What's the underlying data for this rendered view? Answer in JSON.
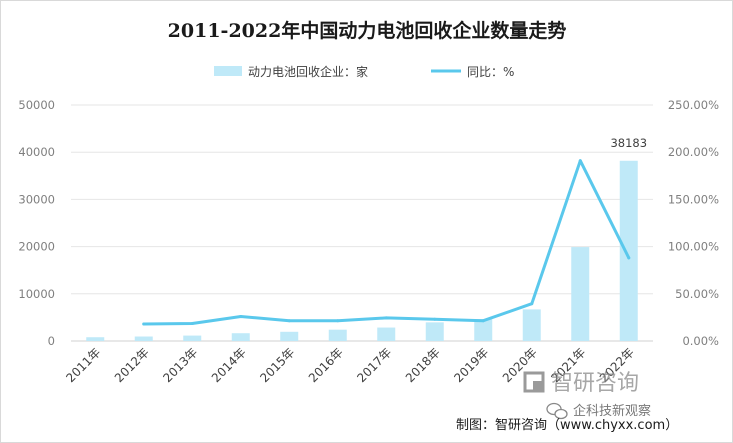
{
  "chart_data": {
    "type": "bar",
    "title": "2011-2022年中国动力电池回收企业数量走势",
    "categories": [
      "2011年",
      "2012年",
      "2013年",
      "2014年",
      "2015年",
      "2016年",
      "2017年",
      "2018年",
      "2019年",
      "2020年",
      "2021年",
      "2022年"
    ],
    "series": [
      {
        "name": "动力电池回收企业：家",
        "type": "bar",
        "axis": "left",
        "values": [
          800,
          950,
          1150,
          1650,
          1950,
          2400,
          2850,
          3950,
          4650,
          6700,
          19900,
          38183
        ]
      },
      {
        "name": "同比：%",
        "type": "line",
        "axis": "right",
        "values": [
          null,
          18.0,
          18.5,
          26.0,
          21.5,
          21.5,
          24.5,
          23.0,
          21.5,
          39.5,
          191.0,
          88.0
        ]
      }
    ],
    "y_left": {
      "min": 0,
      "max": 50000,
      "ticks": [
        "0",
        "10000",
        "20000",
        "30000",
        "40000",
        "50000"
      ]
    },
    "y_right": {
      "min": 0,
      "max": 250,
      "ticks": [
        "0.00%",
        "50.00%",
        "100.00%",
        "150.00%",
        "200.00%",
        "250.00%"
      ]
    },
    "data_labels": [
      {
        "index": 11,
        "text": "38183"
      }
    ],
    "grid": true,
    "legend_position": "top",
    "colors": {
      "bar": "#bfe9f8",
      "line": "#5ac8ec"
    }
  },
  "source": "制图：智研咨询（www.chyxx.com）",
  "watermark": {
    "brand": "智研咨询",
    "wechat": "企科技新观察"
  }
}
